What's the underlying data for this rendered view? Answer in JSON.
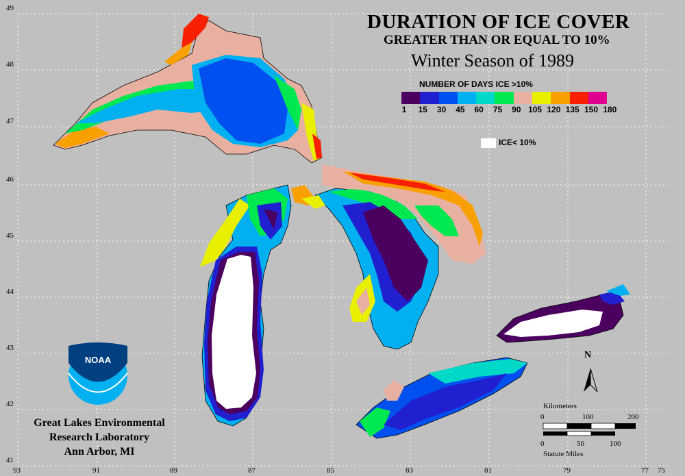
{
  "title": {
    "main": "DURATION OF ICE COVER",
    "sub": "GREATER THAN OR EQUAL TO 10%",
    "season": "Winter Season of 1989"
  },
  "legend": {
    "title": "NUMBER OF DAYS ICE >10%",
    "colors": [
      "#4b0060",
      "#2020d0",
      "#0050f0",
      "#00b0f0",
      "#00d8c8",
      "#00e850",
      "#e8b0a0",
      "#e8f000",
      "#f8a000",
      "#f82000",
      "#e00090"
    ],
    "ticks": [
      "1",
      "15",
      "30",
      "45",
      "60",
      "75",
      "90",
      "105",
      "120",
      "135",
      "150",
      "180"
    ],
    "ice_less_label": "ICE< 10%"
  },
  "latitudes": [
    "49",
    "48",
    "47",
    "46",
    "45",
    "44",
    "43",
    "42",
    "41"
  ],
  "longitudes": [
    "93",
    "91",
    "89",
    "87",
    "85",
    "83",
    "81",
    "79",
    "77",
    "75"
  ],
  "organization": {
    "line1": "Great Lakes Environmental",
    "line2": "Research Laboratory",
    "line3": "Ann Arbor, MI",
    "logo_text": "NOAA"
  },
  "scale": {
    "km_label": "Kilometers",
    "km_ticks": [
      "0",
      "100",
      "200"
    ],
    "mi_label": "Statute Miles",
    "mi_ticks": [
      "0",
      "50",
      "100"
    ]
  },
  "north_label": "N",
  "colors": {
    "background": "#c0c0c0",
    "land_outline": "#000000"
  }
}
